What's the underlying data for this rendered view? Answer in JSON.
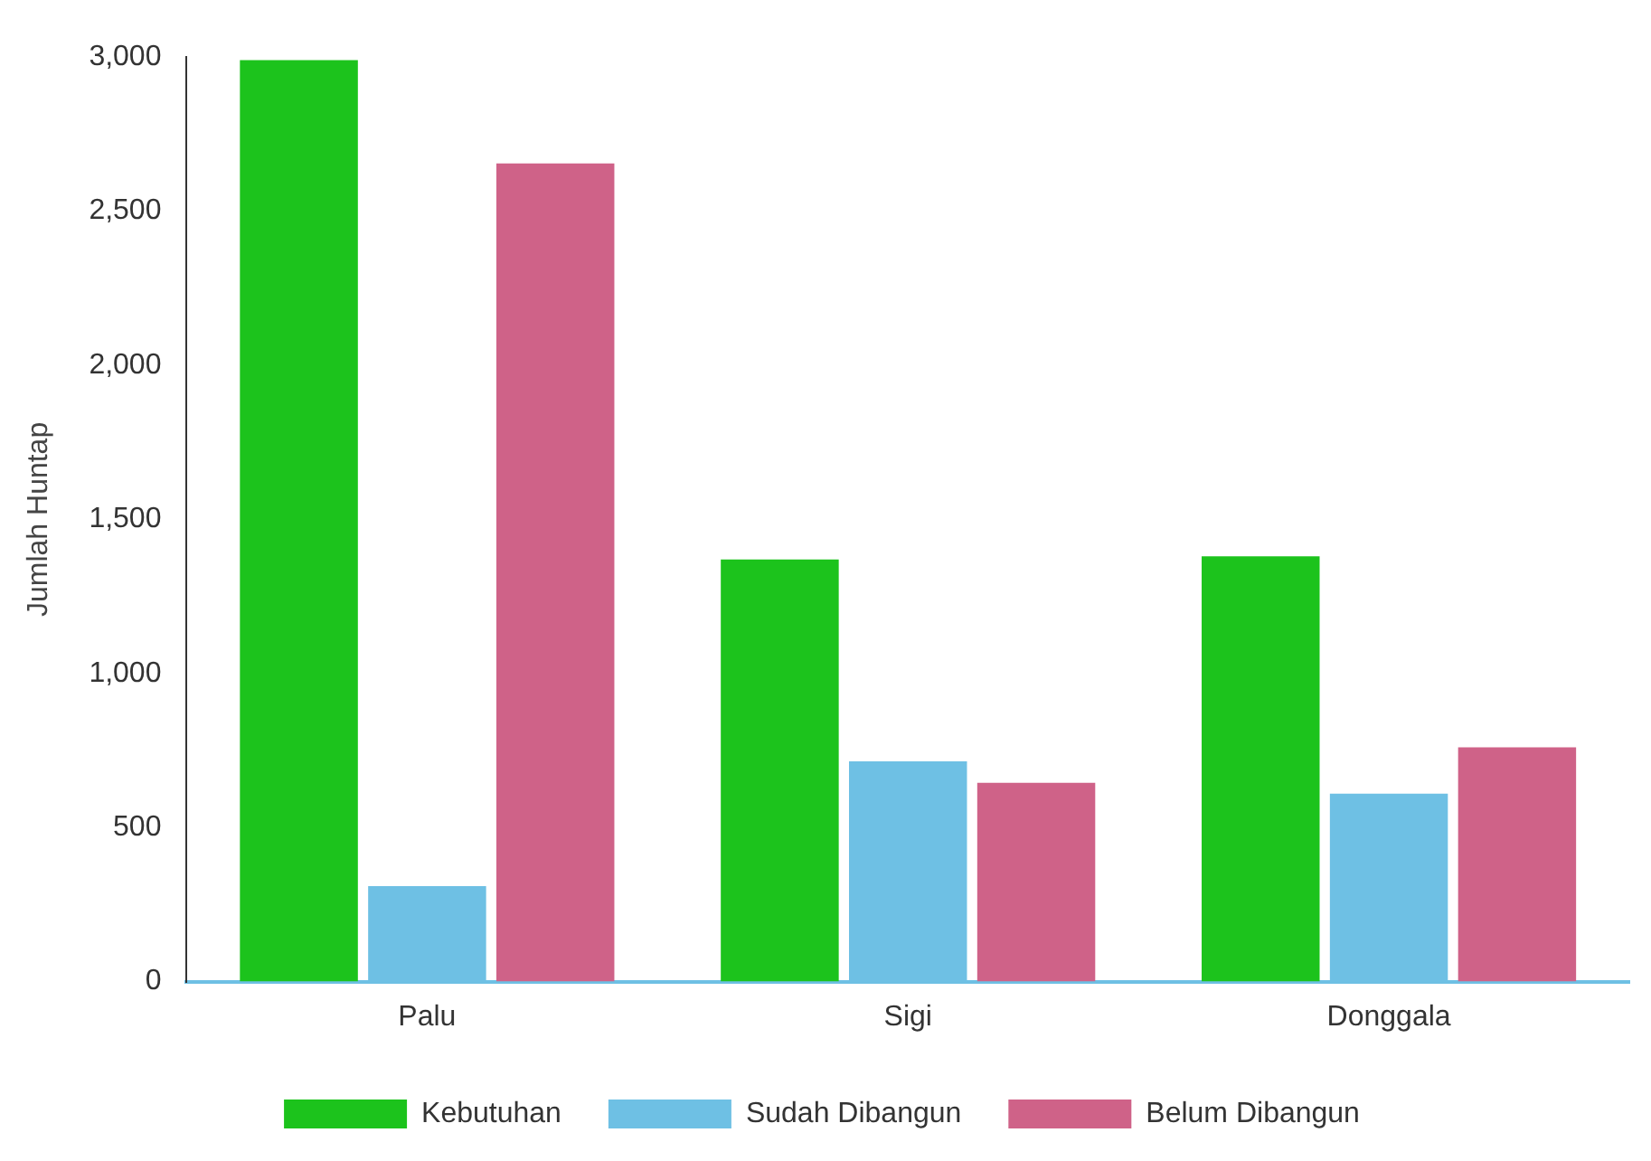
{
  "chart_data": {
    "type": "bar",
    "ylabel": "Jumlah Huntap",
    "categories": [
      "Palu",
      "Sigi",
      "Donggala"
    ],
    "series": [
      {
        "name": "Kebutuhan",
        "color": "#1cc31c",
        "values": [
          2990,
          1370,
          1380
        ]
      },
      {
        "name": "Sudah Dibangun",
        "color": "#6ec0e4",
        "values": [
          310,
          715,
          610
        ]
      },
      {
        "name": "Belum Dibangun",
        "color": "#cf6288",
        "values": [
          2655,
          645,
          760
        ]
      }
    ],
    "ylim": [
      0,
      3000
    ],
    "yticks": [
      0,
      {
        "value": 500,
        "label": "500"
      },
      {
        "value": 1000,
        "label": "1,000"
      },
      {
        "value": 1500,
        "label": "1,500"
      },
      {
        "value": 2000,
        "label": "2,000"
      },
      {
        "value": 2500,
        "label": "2,500"
      },
      {
        "value": 3000,
        "label": "3,000"
      }
    ],
    "grid": false,
    "legend": "bottom"
  }
}
